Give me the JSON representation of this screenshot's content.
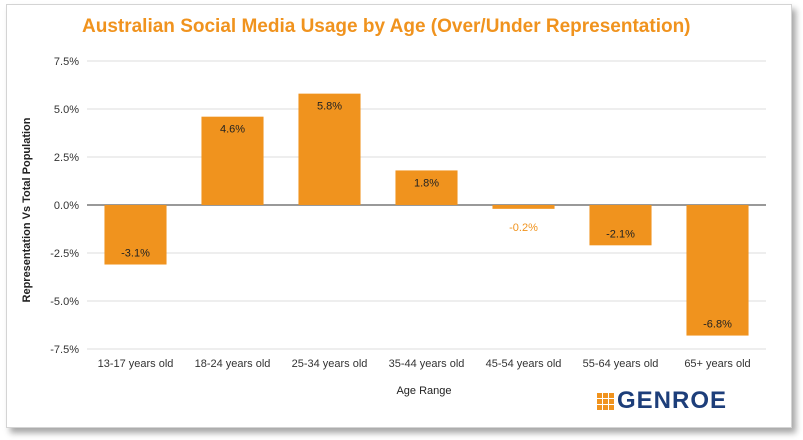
{
  "chart_data": {
    "type": "bar",
    "title": "Australian Social Media Usage by Age (Over/Under Representation)",
    "xlabel": "Age Range",
    "ylabel": "Representation Vs Total Population",
    "categories": [
      "13-17 years old",
      "18-24 years old",
      "25-34 years old",
      "35-44 years old",
      "45-54 years old",
      "55-64 years old",
      "65+ years old"
    ],
    "values": [
      -3.1,
      4.6,
      5.8,
      1.8,
      -0.2,
      -2.1,
      -6.8
    ],
    "value_labels": [
      "-3.1%",
      "4.6%",
      "5.8%",
      "1.8%",
      "-0.2%",
      "-2.1%",
      "-6.8%"
    ],
    "ylim": [
      -7.5,
      7.5
    ],
    "yticks": [
      7.5,
      5.0,
      2.5,
      0.0,
      -2.5,
      -5.0,
      -7.5
    ],
    "ytick_labels": [
      "7.5%",
      "5.0%",
      "2.5%",
      "0.0%",
      "-2.5%",
      "-5.0%",
      "-7.5%"
    ],
    "grid": true,
    "legend": "none",
    "bar_color": "#f0931e"
  },
  "logo": {
    "text": "GENROE"
  }
}
